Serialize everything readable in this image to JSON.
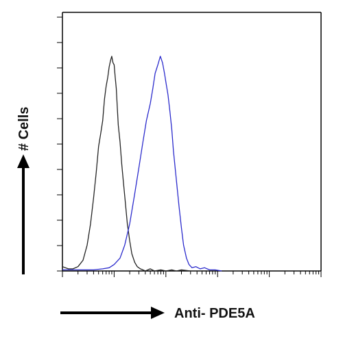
{
  "chart_data": {
    "type": "line",
    "xlabel": "Anti- PDE5A",
    "ylabel": "# Cells",
    "x_scale": "log",
    "xlim": [
      1,
      100000
    ],
    "ylim": [
      0,
      1
    ],
    "grid": false,
    "legend": "none",
    "series": [
      {
        "color": "#222222",
        "x": [
          1,
          1.3,
          1.6,
          2,
          2.5,
          3,
          3.5,
          4,
          4.5,
          5,
          5.5,
          6,
          6.5,
          7,
          7.5,
          8,
          8.5,
          9,
          9.5,
          10,
          10.5,
          11,
          11.5,
          12,
          13,
          14,
          15,
          16,
          18,
          20,
          22,
          25,
          28,
          32,
          36,
          40,
          50,
          60,
          80,
          100,
          130,
          160,
          200,
          300,
          500
        ],
        "y": [
          0.02,
          0.01,
          0.01,
          0.02,
          0.05,
          0.12,
          0.22,
          0.34,
          0.46,
          0.58,
          0.64,
          0.7,
          0.8,
          0.86,
          0.9,
          0.95,
          0.98,
          1.0,
          0.97,
          0.96,
          0.9,
          0.85,
          0.76,
          0.68,
          0.6,
          0.5,
          0.42,
          0.35,
          0.22,
          0.14,
          0.08,
          0.04,
          0.02,
          0.01,
          0.005,
          0,
          0.01,
          0,
          0.005,
          0,
          0.005,
          0,
          0.005,
          0,
          0
        ]
      },
      {
        "color": "#2a2acc",
        "x": [
          1,
          2,
          4,
          6,
          8,
          10,
          13,
          16,
          20,
          25,
          30,
          36,
          42,
          50,
          56,
          62,
          70,
          78,
          86,
          94,
          100,
          110,
          120,
          130,
          140,
          160,
          180,
          200,
          220,
          250,
          280,
          320,
          380,
          460,
          560,
          700,
          900,
          1200
        ],
        "y": [
          0.005,
          0.005,
          0.005,
          0.01,
          0.015,
          0.03,
          0.06,
          0.12,
          0.22,
          0.36,
          0.48,
          0.6,
          0.7,
          0.78,
          0.85,
          0.92,
          0.96,
          1.0,
          0.97,
          0.92,
          0.88,
          0.82,
          0.74,
          0.66,
          0.56,
          0.42,
          0.3,
          0.2,
          0.12,
          0.06,
          0.03,
          0.015,
          0.02,
          0.01,
          0.015,
          0.005,
          0.005,
          0
        ]
      }
    ]
  }
}
